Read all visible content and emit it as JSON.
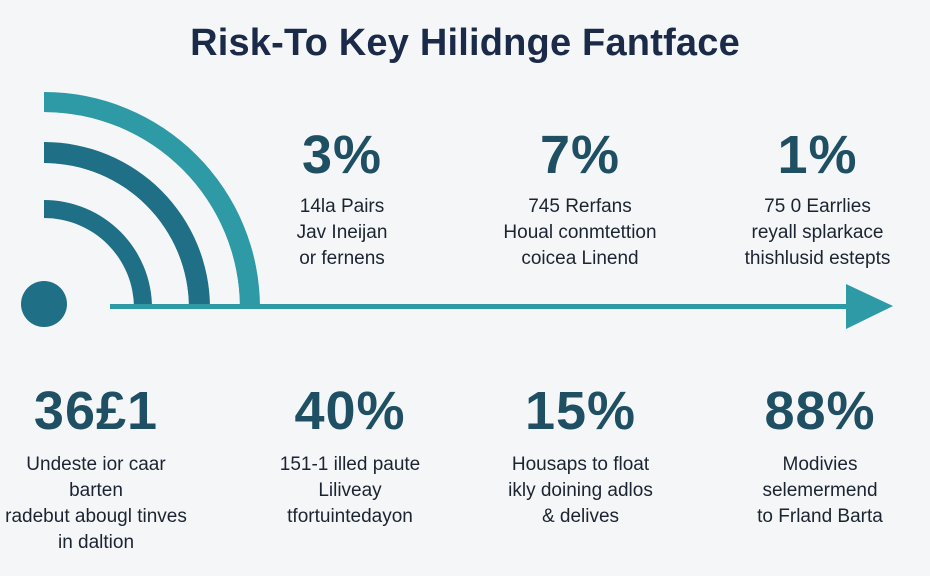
{
  "title": "Risk-To Key Hilidnge Fantface",
  "colors": {
    "title": "#1b2a48",
    "arc_outer": "#2d9aa6",
    "arc_inner": "#1f6f86",
    "dot": "#1f6f86",
    "arrow": "#2e9aa6",
    "stat_value": "#1f4f63"
  },
  "icons": [
    "signal-arcs-icon",
    "arrow-right-icon"
  ],
  "top_stats": [
    {
      "value": "3%",
      "lines": [
        "14la Pairs",
        "Jav Ineijan",
        "or fernens"
      ]
    },
    {
      "value": "7%",
      "lines": [
        "745 Rerfans",
        "Houal conmtettion",
        "coicea Linend"
      ]
    },
    {
      "value": "1%",
      "lines": [
        "75 0 Earrlies",
        "reyall splarkace",
        "thishlusid estepts"
      ]
    }
  ],
  "bottom_stats": [
    {
      "value": "36£1",
      "lines": [
        "Undeste ior caar barten",
        "radebut abougl tinves",
        "in daltion"
      ]
    },
    {
      "value": "40%",
      "lines": [
        "151-1 illed paute",
        "Liliveay",
        "tfortuintedayon"
      ]
    },
    {
      "value": "15%",
      "lines": [
        "Housaps to float",
        "ikly doining adlos",
        "& delives"
      ]
    },
    {
      "value": "88%",
      "lines": [
        "Modivies",
        "selemermend",
        "to Frland Barta"
      ]
    }
  ]
}
